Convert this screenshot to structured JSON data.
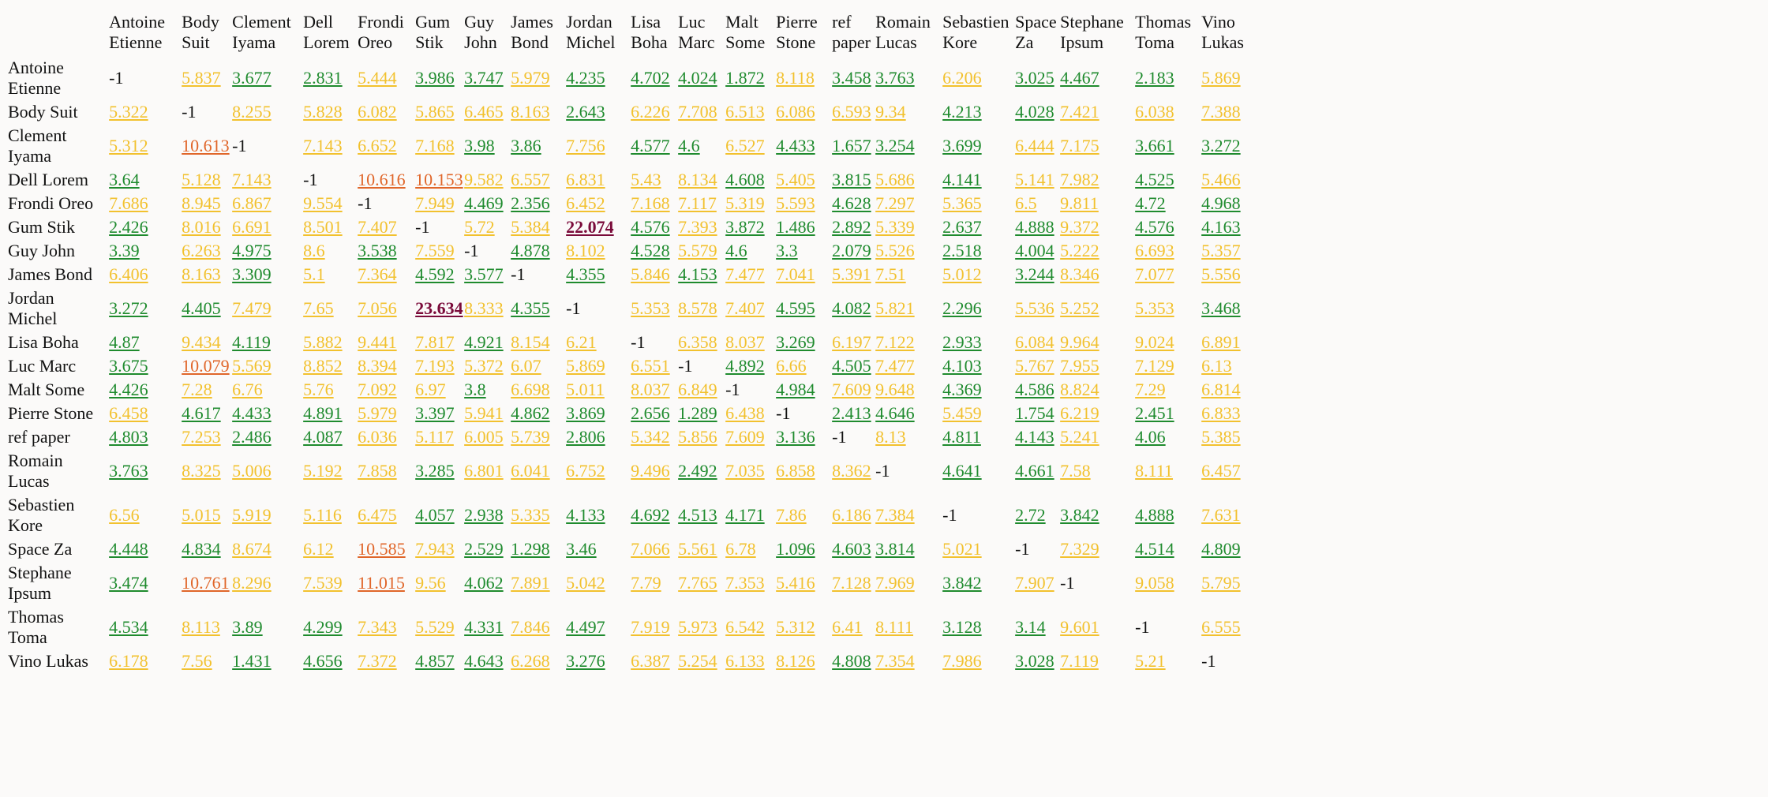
{
  "colors": {
    "green": "#1f8b2e",
    "yellow": "#f2c12e",
    "orange": "#e0662a",
    "max": "#7a0b3a",
    "diagonal": "#111111"
  },
  "names": [
    "Antoine Etienne",
    "Body Suit",
    "Clement Iyama",
    "Dell Lorem",
    "Frondi Oreo",
    "Gum Stik",
    "Guy John",
    "James Bond",
    "Jordan Michel",
    "Lisa Boha",
    "Luc Marc",
    "Malt Some",
    "Pierre Stone",
    "ref paper",
    "Romain Lucas",
    "Sebastien Kore",
    "Space Za",
    "Stephane Ipsum",
    "Thomas Toma",
    "Vino Lukas"
  ],
  "rows": [
    [
      "-1",
      "5.837",
      "3.677",
      "2.831",
      "5.444",
      "3.986",
      "3.747",
      "5.979",
      "4.235",
      "4.702",
      "4.024",
      "1.872",
      "8.118",
      "3.458",
      "3.763",
      "6.206",
      "3.025",
      "4.467",
      "2.183",
      "5.869"
    ],
    [
      "5.322",
      "-1",
      "8.255",
      "5.828",
      "6.082",
      "5.865",
      "6.465",
      "8.163",
      "2.643",
      "6.226",
      "7.708",
      "6.513",
      "6.086",
      "6.593",
      "9.34",
      "4.213",
      "4.028",
      "7.421",
      "6.038",
      "7.388"
    ],
    [
      "5.312",
      "10.613",
      "-1",
      "7.143",
      "6.652",
      "7.168",
      "3.98",
      "3.86",
      "7.756",
      "4.577",
      "4.6",
      "6.527",
      "4.433",
      "1.657",
      "3.254",
      "3.699",
      "6.444",
      "7.175",
      "3.661",
      "3.272"
    ],
    [
      "3.64",
      "5.128",
      "7.143",
      "-1",
      "10.616",
      "10.153",
      "9.582",
      "6.557",
      "6.831",
      "5.43",
      "8.134",
      "4.608",
      "5.405",
      "3.815",
      "5.686",
      "4.141",
      "5.141",
      "7.982",
      "4.525",
      "5.466"
    ],
    [
      "7.686",
      "8.945",
      "6.867",
      "9.554",
      "-1",
      "7.949",
      "4.469",
      "2.356",
      "6.452",
      "7.168",
      "7.117",
      "5.319",
      "5.593",
      "4.628",
      "7.297",
      "5.365",
      "6.5",
      "9.811",
      "4.72",
      "4.968"
    ],
    [
      "2.426",
      "8.016",
      "6.691",
      "8.501",
      "7.407",
      "-1",
      "5.72",
      "5.384",
      "22.074",
      "4.576",
      "7.393",
      "3.872",
      "1.486",
      "2.892",
      "5.339",
      "2.637",
      "4.888",
      "9.372",
      "4.576",
      "4.163"
    ],
    [
      "3.39",
      "6.263",
      "4.975",
      "8.6",
      "3.538",
      "7.559",
      "-1",
      "4.878",
      "8.102",
      "4.528",
      "5.579",
      "4.6",
      "3.3",
      "2.079",
      "5.526",
      "2.518",
      "4.004",
      "5.222",
      "6.693",
      "5.357"
    ],
    [
      "6.406",
      "8.163",
      "3.309",
      "5.1",
      "7.364",
      "4.592",
      "3.577",
      "-1",
      "4.355",
      "5.846",
      "4.153",
      "7.477",
      "7.041",
      "5.391",
      "7.51",
      "5.012",
      "3.244",
      "8.346",
      "7.077",
      "5.556"
    ],
    [
      "3.272",
      "4.405",
      "7.479",
      "7.65",
      "7.056",
      "23.634",
      "8.333",
      "4.355",
      "-1",
      "5.353",
      "8.578",
      "7.407",
      "4.595",
      "4.082",
      "5.821",
      "2.296",
      "5.536",
      "5.252",
      "5.353",
      "3.468"
    ],
    [
      "4.87",
      "9.434",
      "4.119",
      "5.882",
      "9.441",
      "7.817",
      "4.921",
      "8.154",
      "6.21",
      "-1",
      "6.358",
      "8.037",
      "3.269",
      "6.197",
      "7.122",
      "2.933",
      "6.084",
      "9.964",
      "9.024",
      "6.891"
    ],
    [
      "3.675",
      "10.079",
      "5.569",
      "8.852",
      "8.394",
      "7.193",
      "5.372",
      "6.07",
      "5.869",
      "6.551",
      "-1",
      "4.892",
      "6.66",
      "4.505",
      "7.477",
      "4.103",
      "5.767",
      "7.955",
      "7.129",
      "6.13"
    ],
    [
      "4.426",
      "7.28",
      "6.76",
      "5.76",
      "7.092",
      "6.97",
      "3.8",
      "6.698",
      "5.011",
      "8.037",
      "6.849",
      "-1",
      "4.984",
      "7.609",
      "9.648",
      "4.369",
      "4.586",
      "8.824",
      "7.29",
      "6.814"
    ],
    [
      "6.458",
      "4.617",
      "4.433",
      "4.891",
      "5.979",
      "3.397",
      "5.941",
      "4.862",
      "3.869",
      "2.656",
      "1.289",
      "6.438",
      "-1",
      "2.413",
      "4.646",
      "5.459",
      "1.754",
      "6.219",
      "2.451",
      "6.833"
    ],
    [
      "4.803",
      "7.253",
      "2.486",
      "4.087",
      "6.036",
      "5.117",
      "6.005",
      "5.739",
      "2.806",
      "5.342",
      "5.856",
      "7.609",
      "3.136",
      "-1",
      "8.13",
      "4.811",
      "4.143",
      "5.241",
      "4.06",
      "5.385"
    ],
    [
      "3.763",
      "8.325",
      "5.006",
      "5.192",
      "7.858",
      "3.285",
      "6.801",
      "6.041",
      "6.752",
      "9.496",
      "2.492",
      "7.035",
      "6.858",
      "8.362",
      "-1",
      "4.641",
      "4.661",
      "7.58",
      "8.111",
      "6.457"
    ],
    [
      "6.56",
      "5.015",
      "5.919",
      "5.116",
      "6.475",
      "4.057",
      "2.938",
      "5.335",
      "4.133",
      "4.692",
      "4.513",
      "4.171",
      "7.86",
      "6.186",
      "7.384",
      "-1",
      "2.72",
      "3.842",
      "4.888",
      "7.631"
    ],
    [
      "4.448",
      "4.834",
      "8.674",
      "6.12",
      "10.585",
      "7.943",
      "2.529",
      "1.298",
      "3.46",
      "7.066",
      "5.561",
      "6.78",
      "1.096",
      "4.603",
      "3.814",
      "5.021",
      "-1",
      "7.329",
      "4.514",
      "4.809"
    ],
    [
      "3.474",
      "10.761",
      "8.296",
      "7.539",
      "11.015",
      "9.56",
      "4.062",
      "7.891",
      "5.042",
      "7.79",
      "7.765",
      "7.353",
      "5.416",
      "7.128",
      "7.969",
      "3.842",
      "7.907",
      "-1",
      "9.058",
      "5.795"
    ],
    [
      "4.534",
      "8.113",
      "3.89",
      "4.299",
      "7.343",
      "5.529",
      "4.331",
      "7.846",
      "4.497",
      "7.919",
      "5.973",
      "6.542",
      "5.312",
      "6.41",
      "8.111",
      "3.128",
      "3.14",
      "9.601",
      "-1",
      "6.555"
    ],
    [
      "6.178",
      "7.56",
      "1.431",
      "4.656",
      "7.372",
      "4.857",
      "4.643",
      "6.268",
      "3.276",
      "6.387",
      "5.254",
      "6.133",
      "8.126",
      "4.808",
      "7.354",
      "7.986",
      "3.028",
      "7.119",
      "5.21",
      "-1"
    ]
  ]
}
